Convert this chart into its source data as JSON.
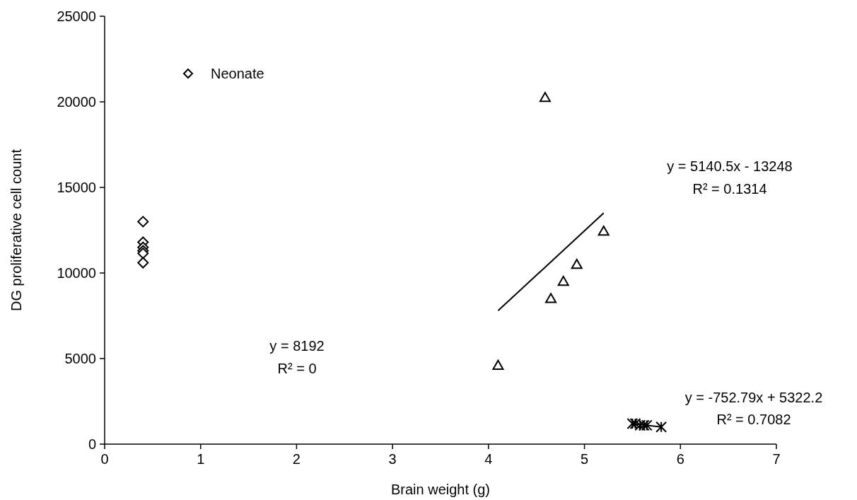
{
  "chart_data": {
    "type": "scatter",
    "xlabel": "Brain weight (g)",
    "ylabel": "DG proliferative cell count",
    "xlim": [
      0,
      7
    ],
    "xticks": [
      0,
      1,
      2,
      3,
      4,
      5,
      6,
      7
    ],
    "ylim": [
      0,
      25000
    ],
    "yticks": [
      0,
      5000,
      10000,
      15000,
      20000,
      25000
    ],
    "grid": false,
    "legend": "top left",
    "series": [
      {
        "name": "Neonate",
        "marker": "diamond",
        "color": "#000000",
        "x": [
          0.4,
          0.4,
          0.4,
          0.4,
          0.4,
          0.4
        ],
        "values": [
          13000,
          11800,
          11500,
          11300,
          11150,
          10600
        ]
      },
      {
        "marker": "triangle",
        "color": "#000000",
        "x": [
          4.1,
          4.59,
          4.65,
          4.78,
          4.92,
          5.2
        ],
        "values": [
          4600,
          20250,
          8500,
          9500,
          10500,
          12440
        ]
      },
      {
        "marker": "cross",
        "color": "#000000",
        "x": [
          5.5,
          5.53,
          5.58,
          5.62,
          5.65,
          5.8
        ],
        "values": [
          1200,
          1200,
          1100,
          1100,
          1100,
          1000
        ]
      },
      {
        "type": "line",
        "marker": "none",
        "line_style": "solid",
        "color": "#000000",
        "x": [
          4.1,
          5.2
        ],
        "values": [
          7800,
          13500
        ]
      },
      {
        "type": "line",
        "marker": "none",
        "line_style": "solid",
        "color": "#000000",
        "x": [
          5.5,
          5.8
        ],
        "values": [
          1200,
          1000
        ]
      }
    ],
    "annotations": [
      "y = 5140.5x - 13248",
      "R² = 0.1314",
      "y = 8192",
      "R² = 0",
      "y = -752.79x + 5322.2",
      "R² = 0.7082"
    ]
  }
}
